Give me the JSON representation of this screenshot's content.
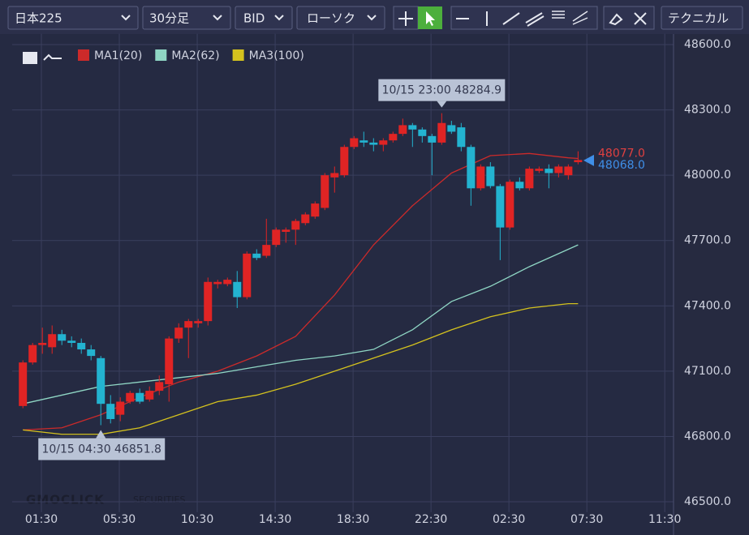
{
  "toolbar": {
    "symbol": "日本225",
    "timeframe": "30分足",
    "price_type": "BID",
    "chart_style": "ローソク",
    "technical": "テクニカル"
  },
  "watermark": {
    "brand": "GMOCLICK",
    "sub": "SECURITIES"
  },
  "chart_data": {
    "type": "candlestick",
    "up_color": "#e02424",
    "down_color": "#23b3d0",
    "ohlc": [
      [
        46940,
        47150,
        46930,
        47140
      ],
      [
        47140,
        47230,
        47130,
        47220
      ],
      [
        47220,
        47300,
        47180,
        47230
      ],
      [
        47210,
        47310,
        47180,
        47270
      ],
      [
        47270,
        47290,
        47220,
        47240
      ],
      [
        47240,
        47260,
        47210,
        47230
      ],
      [
        47230,
        47250,
        47180,
        47200
      ],
      [
        47200,
        47220,
        47150,
        47170
      ],
      [
        47160,
        47170,
        46852,
        46950
      ],
      [
        46950,
        46990,
        46860,
        46880
      ],
      [
        46900,
        46980,
        46870,
        46960
      ],
      [
        46960,
        47010,
        46950,
        47000
      ],
      [
        47000,
        47020,
        46950,
        46960
      ],
      [
        46970,
        47030,
        46960,
        47010
      ],
      [
        47010,
        47080,
        46990,
        47050
      ],
      [
        47040,
        47260,
        46960,
        47250
      ],
      [
        47250,
        47320,
        47230,
        47300
      ],
      [
        47300,
        47340,
        47160,
        47330
      ],
      [
        47320,
        47340,
        47300,
        47330
      ],
      [
        47330,
        47530,
        47310,
        47510
      ],
      [
        47500,
        47520,
        47480,
        47510
      ],
      [
        47500,
        47530,
        47490,
        47520
      ],
      [
        47510,
        47560,
        47390,
        47440
      ],
      [
        47440,
        47650,
        47430,
        47640
      ],
      [
        47640,
        47660,
        47610,
        47620
      ],
      [
        47630,
        47800,
        47620,
        47680
      ],
      [
        47680,
        47760,
        47670,
        47750
      ],
      [
        47740,
        47760,
        47690,
        47750
      ],
      [
        47750,
        47800,
        47680,
        47790
      ],
      [
        47780,
        47830,
        47770,
        47820
      ],
      [
        47810,
        47880,
        47800,
        47870
      ],
      [
        47850,
        48010,
        47840,
        48000
      ],
      [
        47990,
        48040,
        47920,
        48010
      ],
      [
        48000,
        48140,
        47990,
        48130
      ],
      [
        48130,
        48180,
        48120,
        48170
      ],
      [
        48160,
        48200,
        48130,
        48150
      ],
      [
        48150,
        48170,
        48110,
        48140
      ],
      [
        48140,
        48170,
        48110,
        48160
      ],
      [
        48160,
        48200,
        48150,
        48190
      ],
      [
        48190,
        48260,
        48180,
        48230
      ],
      [
        48230,
        48240,
        48130,
        48210
      ],
      [
        48210,
        48220,
        48150,
        48180
      ],
      [
        48180,
        48190,
        48000,
        48150
      ],
      [
        48150,
        48285,
        48140,
        48240
      ],
      [
        48230,
        48250,
        48190,
        48200
      ],
      [
        48220,
        48240,
        48110,
        48130
      ],
      [
        48130,
        48140,
        47860,
        47940
      ],
      [
        47940,
        48050,
        47930,
        48040
      ],
      [
        48040,
        48060,
        47940,
        47950
      ],
      [
        47950,
        47960,
        47610,
        47760
      ],
      [
        47760,
        47980,
        47750,
        47970
      ],
      [
        47970,
        47990,
        47930,
        47940
      ],
      [
        47940,
        48040,
        47930,
        48030
      ],
      [
        48020,
        48040,
        48010,
        48030
      ],
      [
        48030,
        48050,
        47940,
        48010
      ],
      [
        48010,
        48050,
        47990,
        48040
      ],
      [
        48000,
        48050,
        47980,
        48040
      ],
      [
        48060,
        48110,
        48050,
        48070
      ]
    ],
    "series": [
      {
        "name": "MA1(20)",
        "color": "#cc2a2a",
        "x": [
          0,
          4,
          8,
          12,
          16,
          20,
          24,
          28,
          32,
          36,
          40,
          44,
          48,
          52,
          56,
          57
        ],
        "values": [
          46830,
          46840,
          46900,
          46980,
          47050,
          47100,
          47170,
          47260,
          47450,
          47680,
          47860,
          48010,
          48090,
          48100,
          48080,
          48077
        ]
      },
      {
        "name": "MA2(62)",
        "color": "#8fd6c4",
        "x": [
          0,
          4,
          8,
          12,
          16,
          20,
          24,
          28,
          32,
          36,
          40,
          44,
          48,
          52,
          56,
          57
        ],
        "values": [
          46950,
          46990,
          47030,
          47050,
          47070,
          47090,
          47120,
          47150,
          47170,
          47200,
          47290,
          47420,
          47490,
          47580,
          47660,
          47680
        ]
      },
      {
        "name": "MA3(100)",
        "color": "#d4c21e",
        "x": [
          0,
          4,
          8,
          12,
          16,
          20,
          24,
          28,
          32,
          36,
          40,
          44,
          48,
          52,
          56,
          57
        ],
        "values": [
          46830,
          46810,
          46810,
          46840,
          46900,
          46960,
          46990,
          47040,
          47100,
          47160,
          47220,
          47290,
          47350,
          47390,
          47410,
          47410
        ]
      }
    ],
    "price_labels": [
      {
        "value": 48077,
        "label": "48077.0",
        "color": "#e04040"
      },
      {
        "value": 48068,
        "label": "48068.0",
        "color": "#3f8fe8"
      }
    ],
    "annotations": [
      {
        "x": 43,
        "value": 48284.9,
        "text": "10/15 23:00 48284.9",
        "position": "above"
      },
      {
        "x": 8,
        "value": 46851.8,
        "text": "10/15 04:30 46851.8",
        "position": "below"
      }
    ],
    "xlim": [
      -1.1,
      66.8
    ],
    "xticks": [
      {
        "value": 1.9,
        "label": "01:30"
      },
      {
        "value": 9.9,
        "label": "05:30"
      },
      {
        "value": 17.9,
        "label": "10:30"
      },
      {
        "value": 25.9,
        "label": "14:30"
      },
      {
        "value": 33.9,
        "label": "18:30"
      },
      {
        "value": 41.9,
        "label": "22:30"
      },
      {
        "value": 49.9,
        "label": "02:30"
      },
      {
        "value": 57.9,
        "label": "07:30"
      },
      {
        "value": 65.9,
        "label": "11:30"
      }
    ],
    "ylim": [
      46400,
      48650
    ],
    "yticks": [
      {
        "value": 46500,
        "label": "46500.0"
      },
      {
        "value": 46800,
        "label": "46800.0"
      },
      {
        "value": 47100,
        "label": "47100.0"
      },
      {
        "value": 47400,
        "label": "47400.0"
      },
      {
        "value": 47700,
        "label": "47700.0"
      },
      {
        "value": 48000,
        "label": "48000.0"
      },
      {
        "value": 48300,
        "label": "48300.0"
      },
      {
        "value": 48600,
        "label": "48600.0"
      }
    ],
    "grid": true
  }
}
